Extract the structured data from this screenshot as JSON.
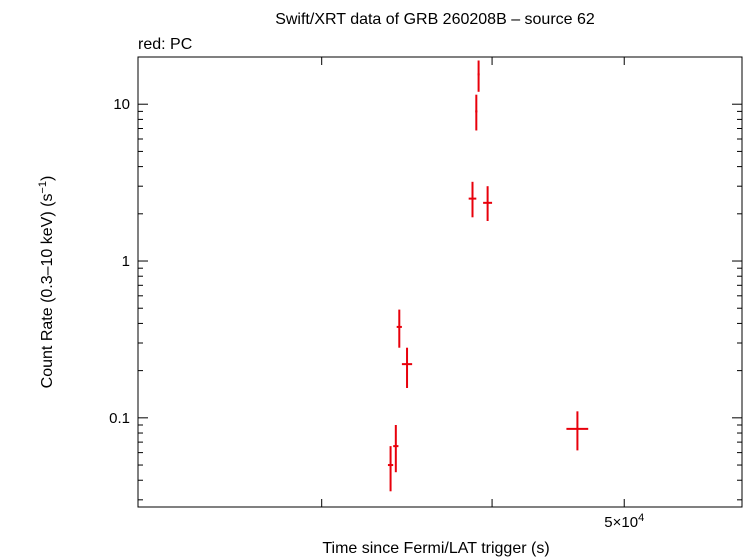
{
  "chart_data": {
    "type": "scatter",
    "title": "Swift/XRT data of GRB 260208B – source 62",
    "subtitle": "red: PC",
    "xlabel": "Time since Fermi/LAT trigger (s)",
    "ylabel_parts": [
      "Count Rate (0.3–10 keV) (s",
      "−1",
      ")"
    ],
    "x_scale": "log",
    "y_scale": "log",
    "xlim": [
      22000,
      61000
    ],
    "ylim": [
      0.027,
      20
    ],
    "x_ticks": [
      {
        "value": 30000,
        "label": ""
      },
      {
        "value": 40000,
        "label": ""
      },
      {
        "value": 50000,
        "label_base": "5×10",
        "label_exp": "4"
      }
    ],
    "y_ticks": [
      {
        "value": 0.1,
        "label": "0.1"
      },
      {
        "value": 1,
        "label": "1"
      },
      {
        "value": 10,
        "label": "10"
      }
    ],
    "series": [
      {
        "color": "#e8000b",
        "points": [
          {
            "x": 33700,
            "y": 0.05,
            "xerr": [
              150,
              150
            ],
            "yerr_low": 0.034,
            "yerr_high": 0.066
          },
          {
            "x": 34000,
            "y": 0.066,
            "xerr": [
              150,
              150
            ],
            "yerr_low": 0.045,
            "yerr_high": 0.09
          },
          {
            "x": 34200,
            "y": 0.38,
            "xerr": [
              150,
              150
            ],
            "yerr_low": 0.28,
            "yerr_high": 0.49
          },
          {
            "x": 34650,
            "y": 0.22,
            "xerr": [
              300,
              300
            ],
            "yerr_low": 0.155,
            "yerr_high": 0.28
          },
          {
            "x": 38700,
            "y": 2.5,
            "xerr": [
              250,
              250
            ],
            "yerr_low": 1.9,
            "yerr_high": 3.2
          },
          {
            "x": 38950,
            "y": 9.0,
            "xerr": [
              70,
              70
            ],
            "yerr_low": 6.8,
            "yerr_high": 11.5
          },
          {
            "x": 39100,
            "y": 15.5,
            "xerr": [
              70,
              70
            ],
            "yerr_low": 12.0,
            "yerr_high": 19.0
          },
          {
            "x": 39700,
            "y": 2.35,
            "xerr": [
              300,
              300
            ],
            "yerr_low": 1.8,
            "yerr_high": 3.0
          },
          {
            "x": 46200,
            "y": 0.085,
            "xerr": [
              850,
              850
            ],
            "yerr_low": 0.062,
            "yerr_high": 0.11
          }
        ]
      }
    ]
  }
}
